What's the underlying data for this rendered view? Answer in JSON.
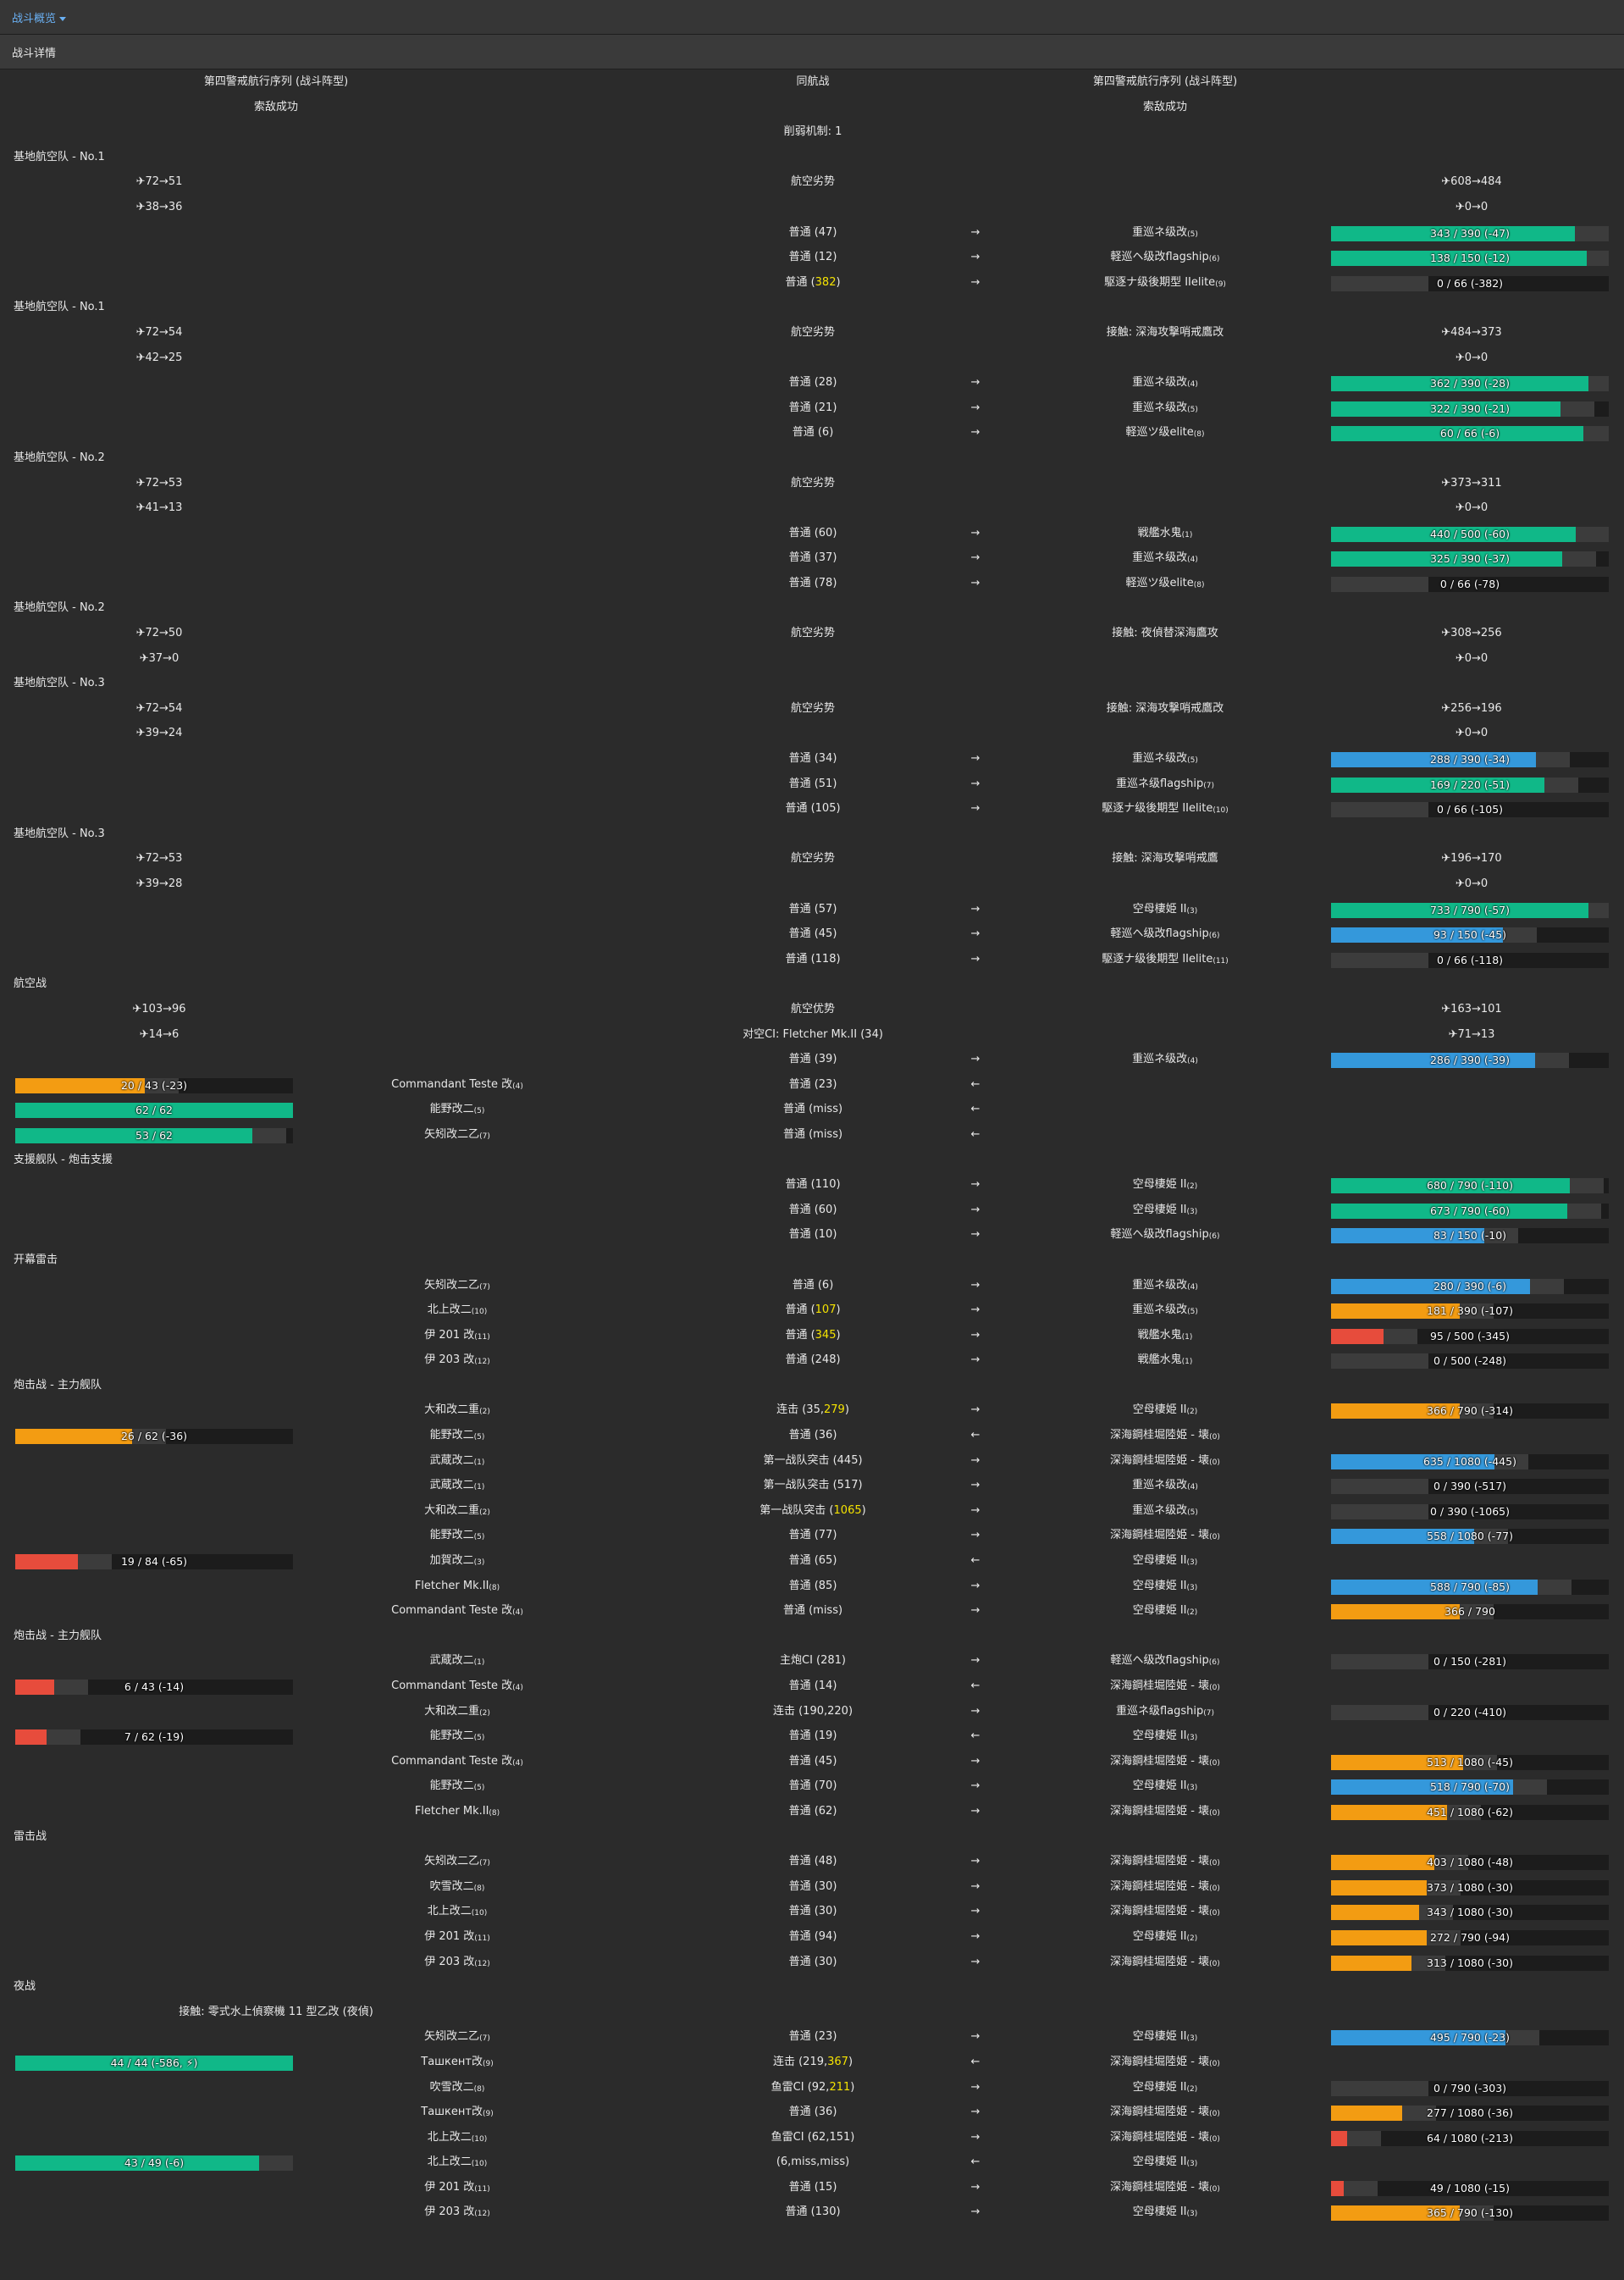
{
  "topbar": {
    "dropdown_label": "战斗概览"
  },
  "panel": {
    "title": "战斗详情"
  },
  "colors": {
    "background": "#2b2b2b",
    "green": "#10b888",
    "blue": "#3498db",
    "orange": "#f39c12",
    "red": "#e74c3c",
    "damage_highlight": "#f5e300"
  },
  "rows": [
    {
      "lt": "第四警戒航行序列 (战斗阵型)",
      "mt": "同航战",
      "rt": "第四警戒航行序列 (战斗阵型)"
    },
    {
      "lt": "索敌成功",
      "rt": "索敌成功"
    },
    {
      "mt": "削弱机制: 1"
    },
    {
      "sec": "基地航空队 - No.1"
    },
    {
      "lp": "✈72→51",
      "mt": "航空劣势",
      "rp": "✈608→484"
    },
    {
      "lp": "✈38→36",
      "rp": "✈0→0"
    },
    {
      "at": "普通 (47)",
      "ar": "→",
      "tn": "重巡ネ级改",
      "ti": "(5)",
      "hp": {
        "v": 343,
        "m": 390,
        "t": "343 / 390 (-47)",
        "c": "green"
      }
    },
    {
      "at": "普通 (12)",
      "ar": "→",
      "tn": "軽巡ヘ级改flagship",
      "ti": "(6)",
      "hp": {
        "v": 138,
        "m": 150,
        "t": "138 / 150 (-12)",
        "c": "green"
      }
    },
    {
      "at": "普通 (",
      "ay": "382",
      "az": ")",
      "ar": "→",
      "tn": "駆逐ナ级後期型 IIelite",
      "ti": "(9)",
      "hp": {
        "v": 0,
        "m": 66,
        "t": "0 / 66 (-382)",
        "c": "green"
      }
    },
    {
      "sec": "基地航空队 - No.1"
    },
    {
      "lp": "✈72→54",
      "mt": "航空劣势",
      "rt": "接触: 深海攻撃哨戒鷹改",
      "rp": "✈484→373"
    },
    {
      "lp": "✈42→25",
      "rp": "✈0→0"
    },
    {
      "at": "普通 (28)",
      "ar": "→",
      "tn": "重巡ネ级改",
      "ti": "(4)",
      "hp": {
        "v": 362,
        "m": 390,
        "t": "362 / 390 (-28)",
        "c": "green"
      }
    },
    {
      "at": "普通 (21)",
      "ar": "→",
      "tn": "重巡ネ级改",
      "ti": "(5)",
      "hp": {
        "v": 322,
        "m": 390,
        "t": "322 / 390 (-21)",
        "c": "green"
      }
    },
    {
      "at": "普通 (6)",
      "ar": "→",
      "tn": "軽巡ツ级elite",
      "ti": "(8)",
      "hp": {
        "v": 60,
        "m": 66,
        "t": "60 / 66 (-6)",
        "c": "green"
      }
    },
    {
      "sec": "基地航空队 - No.2"
    },
    {
      "lp": "✈72→53",
      "mt": "航空劣势",
      "rp": "✈373→311"
    },
    {
      "lp": "✈41→13",
      "rp": "✈0→0"
    },
    {
      "at": "普通 (60)",
      "ar": "→",
      "tn": "戦艦水鬼",
      "ti": "(1)",
      "hp": {
        "v": 440,
        "m": 500,
        "t": "440 / 500 (-60)",
        "c": "green"
      }
    },
    {
      "at": "普通 (37)",
      "ar": "→",
      "tn": "重巡ネ级改",
      "ti": "(4)",
      "hp": {
        "v": 325,
        "m": 390,
        "t": "325 / 390 (-37)",
        "c": "green"
      }
    },
    {
      "at": "普通 (78)",
      "ar": "→",
      "tn": "軽巡ツ级elite",
      "ti": "(8)",
      "hp": {
        "v": 0,
        "m": 66,
        "t": "0 / 66 (-78)",
        "c": "green"
      }
    },
    {
      "sec": "基地航空队 - No.2"
    },
    {
      "lp": "✈72→50",
      "mt": "航空劣势",
      "rt": "接触: 夜偵替深海鷹攻",
      "rp": "✈308→256"
    },
    {
      "lp": "✈37→0",
      "rp": "✈0→0"
    },
    {
      "sec": "基地航空队 - No.3"
    },
    {
      "lp": "✈72→54",
      "mt": "航空劣势",
      "rt": "接触: 深海攻撃哨戒鷹改",
      "rp": "✈256→196"
    },
    {
      "lp": "✈39→24",
      "rp": "✈0→0"
    },
    {
      "at": "普通 (34)",
      "ar": "→",
      "tn": "重巡ネ级改",
      "ti": "(5)",
      "hp": {
        "v": 288,
        "m": 390,
        "t": "288 / 390 (-34)",
        "c": "blue"
      }
    },
    {
      "at": "普通 (51)",
      "ar": "→",
      "tn": "重巡ネ级flagship",
      "ti": "(7)",
      "hp": {
        "v": 169,
        "m": 220,
        "t": "169 / 220 (-51)",
        "c": "green"
      }
    },
    {
      "at": "普通 (105)",
      "ar": "→",
      "tn": "駆逐ナ级後期型 IIelite",
      "ti": "(10)",
      "hp": {
        "v": 0,
        "m": 66,
        "t": "0 / 66 (-105)",
        "c": "green"
      }
    },
    {
      "sec": "基地航空队 - No.3"
    },
    {
      "lp": "✈72→53",
      "mt": "航空劣势",
      "rt": "接触: 深海攻撃哨戒鷹",
      "rp": "✈196→170"
    },
    {
      "lp": "✈39→28",
      "rp": "✈0→0"
    },
    {
      "at": "普通 (57)",
      "ar": "→",
      "tn": "空母棲姫 II",
      "ti": "(3)",
      "hp": {
        "v": 733,
        "m": 790,
        "t": "733 / 790 (-57)",
        "c": "green"
      }
    },
    {
      "at": "普通 (45)",
      "ar": "→",
      "tn": "軽巡ヘ级改flagship",
      "ti": "(6)",
      "hp": {
        "v": 93,
        "m": 150,
        "t": "93 / 150 (-45)",
        "c": "blue"
      }
    },
    {
      "at": "普通 (118)",
      "ar": "→",
      "tn": "駆逐ナ级後期型 IIelite",
      "ti": "(11)",
      "hp": {
        "v": 0,
        "m": 66,
        "t": "0 / 66 (-118)",
        "c": "green"
      }
    },
    {
      "sec": "航空战"
    },
    {
      "lp": "✈103→96",
      "mt": "航空优势",
      "rp": "✈163→101"
    },
    {
      "lp": "✈14→6",
      "mt": "对空CI: Fletcher Mk.II (34)",
      "rp": "✈71→13"
    },
    {
      "at": "普通 (39)",
      "ar": "→",
      "tn": "重巡ネ级改",
      "ti": "(4)",
      "hp": {
        "v": 286,
        "m": 390,
        "t": "286 / 390 (-39)",
        "c": "blue"
      }
    },
    {
      "lhp": {
        "v": 20,
        "m": 43,
        "t": "20 / 43 (-23)",
        "c": "orange"
      },
      "ls": "Commandant Teste 改",
      "li": "(4)",
      "ar": "←",
      "at": "普通 (23)"
    },
    {
      "lhp": {
        "v": 62,
        "m": 62,
        "t": "62 / 62",
        "c": "green"
      },
      "ls": "能野改二",
      "li": "(5)",
      "ar": "←",
      "at": "普通 (miss)"
    },
    {
      "lhp": {
        "v": 53,
        "m": 62,
        "t": "53 / 62",
        "c": "green"
      },
      "ls": "矢矧改二乙",
      "li": "(7)",
      "ar": "←",
      "at": "普通 (miss)"
    },
    {
      "sec": "支援舰队 - 炮击支援"
    },
    {
      "at": "普通 (110)",
      "ar": "→",
      "tn": "空母棲姫 II",
      "ti": "(2)",
      "hp": {
        "v": 680,
        "m": 790,
        "t": "680 / 790 (-110)",
        "c": "green"
      }
    },
    {
      "at": "普通 (60)",
      "ar": "→",
      "tn": "空母棲姫 II",
      "ti": "(3)",
      "hp": {
        "v": 673,
        "m": 790,
        "t": "673 / 790 (-60)",
        "c": "green"
      }
    },
    {
      "at": "普通 (10)",
      "ar": "→",
      "tn": "軽巡ヘ级改flagship",
      "ti": "(6)",
      "hp": {
        "v": 83,
        "m": 150,
        "t": "83 / 150 (-10)",
        "c": "blue"
      }
    },
    {
      "sec": "开幕雷击"
    },
    {
      "ls": "矢矧改二乙",
      "li": "(7)",
      "at": "普通 (6)",
      "ar": "→",
      "tn": "重巡ネ级改",
      "ti": "(4)",
      "hp": {
        "v": 280,
        "m": 390,
        "t": "280 / 390 (-6)",
        "c": "blue"
      }
    },
    {
      "ls": "北上改二",
      "li": "(10)",
      "at": "普通 (",
      "ay": "107",
      "az": ")",
      "ar": "→",
      "tn": "重巡ネ级改",
      "ti": "(5)",
      "hp": {
        "v": 181,
        "m": 390,
        "t": "181 / 390 (-107)",
        "c": "orange"
      }
    },
    {
      "ls": "伊 201 改",
      "li": "(11)",
      "at": "普通 (",
      "ay": "345",
      "az": ")",
      "ar": "→",
      "tn": "戦艦水鬼",
      "ti": "(1)",
      "hp": {
        "v": 95,
        "m": 500,
        "t": "95 / 500 (-345)",
        "c": "red"
      }
    },
    {
      "ls": "伊 203 改",
      "li": "(12)",
      "at": "普通 (248)",
      "ar": "→",
      "tn": "戦艦水鬼",
      "ti": "(1)",
      "hp": {
        "v": 0,
        "m": 500,
        "t": "0 / 500 (-248)",
        "c": "green"
      }
    },
    {
      "sec": "炮击战 - 主力舰队"
    },
    {
      "ls": "大和改二重",
      "li": "(2)",
      "at": "连击 (35,",
      "ay": "279",
      "az": ")",
      "ar": "→",
      "tn": "空母棲姫 II",
      "ti": "(2)",
      "hp": {
        "v": 366,
        "m": 790,
        "t": "366 / 790 (-314)",
        "c": "orange"
      }
    },
    {
      "lhp": {
        "v": 26,
        "m": 62,
        "t": "26 / 62 (-36)",
        "c": "orange"
      },
      "ls": "能野改二",
      "li": "(5)",
      "ar": "←",
      "at": "普通 (36)",
      "tn": "深海鋼桂堀陸姫 - 壊",
      "ti": "(0)"
    },
    {
      "ls": "武蔵改二",
      "li": "(1)",
      "at": "第一战队突击 (445)",
      "ar": "→",
      "tn": "深海鋼桂堀陸姫 - 壊",
      "ti": "(0)",
      "hp": {
        "v": 635,
        "m": 1080,
        "t": "635 / 1080 (-445)",
        "c": "blue"
      }
    },
    {
      "ls": "武蔵改二",
      "li": "(1)",
      "at": "第一战队突击 (517)",
      "ar": "→",
      "tn": "重巡ネ级改",
      "ti": "(4)",
      "hp": {
        "v": 0,
        "m": 390,
        "t": "0 / 390 (-517)",
        "c": "green"
      }
    },
    {
      "ls": "大和改二重",
      "li": "(2)",
      "at": "第一战队突击 (",
      "ay": "1065",
      "az": ")",
      "ar": "→",
      "tn": "重巡ネ级改",
      "ti": "(5)",
      "hp": {
        "v": 0,
        "m": 390,
        "t": "0 / 390 (-1065)",
        "c": "green"
      }
    },
    {
      "ls": "能野改二",
      "li": "(5)",
      "at": "普通 (77)",
      "ar": "→",
      "tn": "深海鋼桂堀陸姫 - 壊",
      "ti": "(0)",
      "hp": {
        "v": 558,
        "m": 1080,
        "t": "558 / 1080 (-77)",
        "c": "blue"
      }
    },
    {
      "lhp": {
        "v": 19,
        "m": 84,
        "t": "19 / 84 (-65)",
        "c": "red"
      },
      "ls": "加賀改二",
      "li": "(3)",
      "ar": "←",
      "at": "普通 (65)",
      "tn": "空母棲姫 II",
      "ti": "(3)"
    },
    {
      "ls": "Fletcher Mk.II",
      "li": "(8)",
      "at": "普通 (85)",
      "ar": "→",
      "tn": "空母棲姫 II",
      "ti": "(3)",
      "hp": {
        "v": 588,
        "m": 790,
        "t": "588 / 790 (-85)",
        "c": "blue"
      }
    },
    {
      "ls": "Commandant Teste 改",
      "li": "(4)",
      "at": "普通 (miss)",
      "ar": "→",
      "tn": "空母棲姫 II",
      "ti": "(2)",
      "hp": {
        "v": 366,
        "m": 790,
        "t": "366 / 790",
        "c": "orange"
      }
    },
    {
      "sec": "炮击战 - 主力舰队"
    },
    {
      "ls": "武蔵改二",
      "li": "(1)",
      "at": "主炮CI (281)",
      "ar": "→",
      "tn": "軽巡ヘ级改flagship",
      "ti": "(6)",
      "hp": {
        "v": 0,
        "m": 150,
        "t": "0 / 150 (-281)",
        "c": "green"
      }
    },
    {
      "lhp": {
        "v": 6,
        "m": 43,
        "t": "6 / 43 (-14)",
        "c": "red"
      },
      "ls": "Commandant Teste 改",
      "li": "(4)",
      "ar": "←",
      "at": "普通 (14)",
      "tn": "深海鋼桂堀陸姫 - 壊",
      "ti": "(0)"
    },
    {
      "ls": "大和改二重",
      "li": "(2)",
      "at": "连击 (190,220)",
      "ar": "→",
      "tn": "重巡ネ级flagship",
      "ti": "(7)",
      "hp": {
        "v": 0,
        "m": 220,
        "t": "0 / 220 (-410)",
        "c": "green"
      }
    },
    {
      "lhp": {
        "v": 7,
        "m": 62,
        "t": "7 / 62 (-19)",
        "c": "red"
      },
      "ls": "能野改二",
      "li": "(5)",
      "ar": "←",
      "at": "普通 (19)",
      "tn": "空母棲姫 II",
      "ti": "(3)"
    },
    {
      "ls": "Commandant Teste 改",
      "li": "(4)",
      "at": "普通 (45)",
      "ar": "→",
      "tn": "深海鋼桂堀陸姫 - 壊",
      "ti": "(0)",
      "hp": {
        "v": 513,
        "m": 1080,
        "t": "513 / 1080 (-45)",
        "c": "orange"
      }
    },
    {
      "ls": "能野改二",
      "li": "(5)",
      "at": "普通 (70)",
      "ar": "→",
      "tn": "空母棲姫 II",
      "ti": "(3)",
      "hp": {
        "v": 518,
        "m": 790,
        "t": "518 / 790 (-70)",
        "c": "blue"
      }
    },
    {
      "ls": "Fletcher Mk.II",
      "li": "(8)",
      "at": "普通 (62)",
      "ar": "→",
      "tn": "深海鋼桂堀陸姫 - 壊",
      "ti": "(0)",
      "hp": {
        "v": 451,
        "m": 1080,
        "t": "451 / 1080 (-62)",
        "c": "orange"
      }
    },
    {
      "sec": "雷击战"
    },
    {
      "ls": "矢矧改二乙",
      "li": "(7)",
      "at": "普通 (48)",
      "ar": "→",
      "tn": "深海鋼桂堀陸姫 - 壊",
      "ti": "(0)",
      "hp": {
        "v": 403,
        "m": 1080,
        "t": "403 / 1080 (-48)",
        "c": "orange"
      }
    },
    {
      "ls": "吹雪改二",
      "li": "(8)",
      "at": "普通 (30)",
      "ar": "→",
      "tn": "深海鋼桂堀陸姫 - 壊",
      "ti": "(0)",
      "hp": {
        "v": 373,
        "m": 1080,
        "t": "373 / 1080 (-30)",
        "c": "orange"
      }
    },
    {
      "ls": "北上改二",
      "li": "(10)",
      "at": "普通 (30)",
      "ar": "→",
      "tn": "深海鋼桂堀陸姫 - 壊",
      "ti": "(0)",
      "hp": {
        "v": 343,
        "m": 1080,
        "t": "343 / 1080 (-30)",
        "c": "orange"
      }
    },
    {
      "ls": "伊 201 改",
      "li": "(11)",
      "at": "普通 (94)",
      "ar": "→",
      "tn": "空母棲姫 II",
      "ti": "(2)",
      "hp": {
        "v": 272,
        "m": 790,
        "t": "272 / 790 (-94)",
        "c": "orange"
      }
    },
    {
      "ls": "伊 203 改",
      "li": "(12)",
      "at": "普通 (30)",
      "ar": "→",
      "tn": "深海鋼桂堀陸姫 - 壊",
      "ti": "(0)",
      "hp": {
        "v": 313,
        "m": 1080,
        "t": "313 / 1080 (-30)",
        "c": "orange"
      }
    },
    {
      "sec": "夜战"
    },
    {
      "lt": "接触: 零式水上偵察機 11 型乙改 (夜偵)"
    },
    {
      "ls": "矢矧改二乙",
      "li": "(7)",
      "at": "普通 (23)",
      "ar": "→",
      "tn": "空母棲姫 II",
      "ti": "(3)",
      "hp": {
        "v": 495,
        "m": 790,
        "t": "495 / 790 (-23)",
        "c": "blue"
      }
    },
    {
      "lhp": {
        "v": 44,
        "m": 44,
        "t": "44 / 44 (-586, ⚡)",
        "c": "green"
      },
      "ls": "Ташкент改",
      "li": "(9)",
      "ar": "←",
      "at": "连击 (219,",
      "ay": "367",
      "az": ")",
      "tn": "深海鋼桂堀陸姫 - 壊",
      "ti": "(0)"
    },
    {
      "ls": "吹雪改二",
      "li": "(8)",
      "at": "鱼雷CI (92,",
      "ay": "211",
      "az": ")",
      "ar": "→",
      "tn": "空母棲姫 II",
      "ti": "(2)",
      "hp": {
        "v": 0,
        "m": 790,
        "t": "0 / 790 (-303)",
        "c": "green"
      }
    },
    {
      "ls": "Ташкент改",
      "li": "(9)",
      "at": "普通 (36)",
      "ar": "→",
      "tn": "深海鋼桂堀陸姫 - 壊",
      "ti": "(0)",
      "hp": {
        "v": 277,
        "m": 1080,
        "t": "277 / 1080 (-36)",
        "c": "orange"
      }
    },
    {
      "ls": "北上改二",
      "li": "(10)",
      "at": "鱼雷CI (62,151)",
      "ar": "→",
      "tn": "深海鋼桂堀陸姫 - 壊",
      "ti": "(0)",
      "hp": {
        "v": 64,
        "m": 1080,
        "t": "64 / 1080 (-213)",
        "c": "red"
      }
    },
    {
      "lhp": {
        "v": 43,
        "m": 49,
        "t": "43 / 49 (-6)",
        "c": "green"
      },
      "ls": "北上改二",
      "li": "(10)",
      "ar": "←",
      "at": "(6,miss,miss)",
      "tn": "空母棲姫 II",
      "ti": "(3)"
    },
    {
      "ls": "伊 201 改",
      "li": "(11)",
      "at": "普通 (15)",
      "ar": "→",
      "tn": "深海鋼桂堀陸姫 - 壊",
      "ti": "(0)",
      "hp": {
        "v": 49,
        "m": 1080,
        "t": "49 / 1080 (-15)",
        "c": "red"
      }
    },
    {
      "ls": "伊 203 改",
      "li": "(12)",
      "at": "普通 (130)",
      "ar": "→",
      "tn": "空母棲姫 II",
      "ti": "(3)",
      "hp": {
        "v": 365,
        "m": 790,
        "t": "365 / 790 (-130)",
        "c": "orange"
      }
    }
  ]
}
